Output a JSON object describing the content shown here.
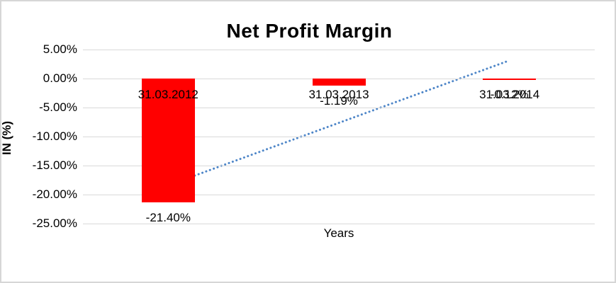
{
  "chart_data": {
    "type": "bar",
    "title": "Net Profit Margin",
    "xlabel": "Years",
    "ylabel": "IN (%)",
    "categories": [
      "31.03.2012",
      "31.03.2013",
      "31.03.2014"
    ],
    "values": [
      -21.4,
      -1.19,
      -0.12
    ],
    "data_labels": [
      "-21.40%",
      "-1.19%",
      "-0.12%"
    ],
    "ylim": [
      -25,
      5
    ],
    "ytick_step": 5,
    "yticks": [
      "5.00%",
      "0.00%",
      "-5.00%",
      "-10.00%",
      "-15.00%",
      "-20.00%",
      "-25.00%"
    ],
    "grid": true,
    "legend": "none",
    "bar_color": "#FF0000",
    "trendline": {
      "style": "dotted",
      "color": "#4E86C8",
      "start": {
        "x": 0.5,
        "y": -18.4
      },
      "end": {
        "x": 2.48,
        "y": 2.9
      }
    }
  },
  "colors": {
    "gridline": "#D9D9D9",
    "border": "#D6D6D6",
    "background": "#FFFFFF",
    "text": "#000000"
  }
}
